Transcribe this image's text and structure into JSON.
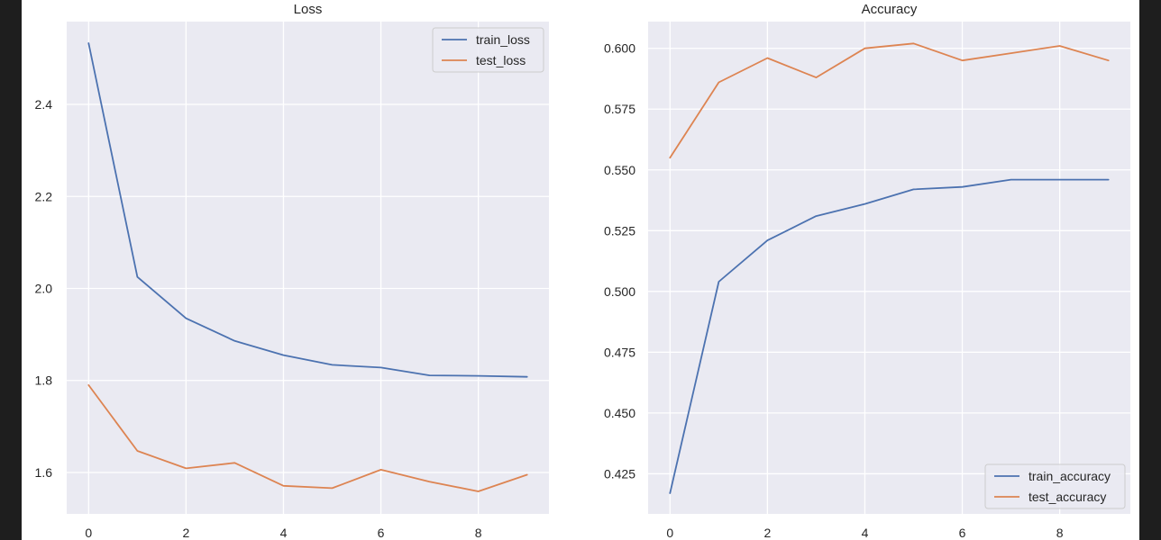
{
  "chart_data": [
    {
      "type": "line",
      "title": "Loss",
      "xlabel": "",
      "ylabel": "",
      "x": [
        0,
        1,
        2,
        3,
        4,
        5,
        6,
        7,
        8,
        9
      ],
      "xlim": [
        -0.45,
        9.45
      ],
      "ylim": [
        1.51,
        2.58
      ],
      "xticks": [
        0,
        2,
        4,
        6,
        8
      ],
      "xtick_labels": [
        "0",
        "2",
        "4",
        "6",
        "8"
      ],
      "yticks": [
        1.6,
        1.8,
        2.0,
        2.2,
        2.4
      ],
      "ytick_labels": [
        "1.6",
        "1.8",
        "2.0",
        "2.2",
        "2.4"
      ],
      "grid": true,
      "legend_position": "top-right",
      "series": [
        {
          "name": "train_loss",
          "color": "#4c72b0",
          "values": [
            2.533,
            2.025,
            1.935,
            1.886,
            1.855,
            1.834,
            1.828,
            1.811,
            1.81,
            1.808
          ]
        },
        {
          "name": "test_loss",
          "color": "#dd8452",
          "values": [
            1.79,
            1.647,
            1.609,
            1.621,
            1.571,
            1.566,
            1.606,
            1.58,
            1.559,
            1.595
          ]
        }
      ]
    },
    {
      "type": "line",
      "title": "Accuracy",
      "xlabel": "",
      "ylabel": "",
      "x": [
        0,
        1,
        2,
        3,
        4,
        5,
        6,
        7,
        8,
        9
      ],
      "xlim": [
        -0.45,
        9.45
      ],
      "ylim": [
        0.4085,
        0.611
      ],
      "xticks": [
        0,
        2,
        4,
        6,
        8
      ],
      "xtick_labels": [
        "0",
        "2",
        "4",
        "6",
        "8"
      ],
      "yticks": [
        0.425,
        0.45,
        0.475,
        0.5,
        0.525,
        0.55,
        0.575,
        0.6
      ],
      "ytick_labels": [
        "0.425",
        "0.450",
        "0.475",
        "0.500",
        "0.525",
        "0.550",
        "0.575",
        "0.600"
      ],
      "grid": true,
      "legend_position": "bottom-right",
      "series": [
        {
          "name": "train_accuracy",
          "color": "#4c72b0",
          "values": [
            0.417,
            0.504,
            0.521,
            0.531,
            0.536,
            0.542,
            0.543,
            0.546,
            0.546,
            0.546
          ]
        },
        {
          "name": "test_accuracy",
          "color": "#dd8452",
          "values": [
            0.555,
            0.586,
            0.596,
            0.588,
            0.6,
            0.602,
            0.595,
            0.598,
            0.601,
            0.595
          ]
        }
      ]
    }
  ]
}
